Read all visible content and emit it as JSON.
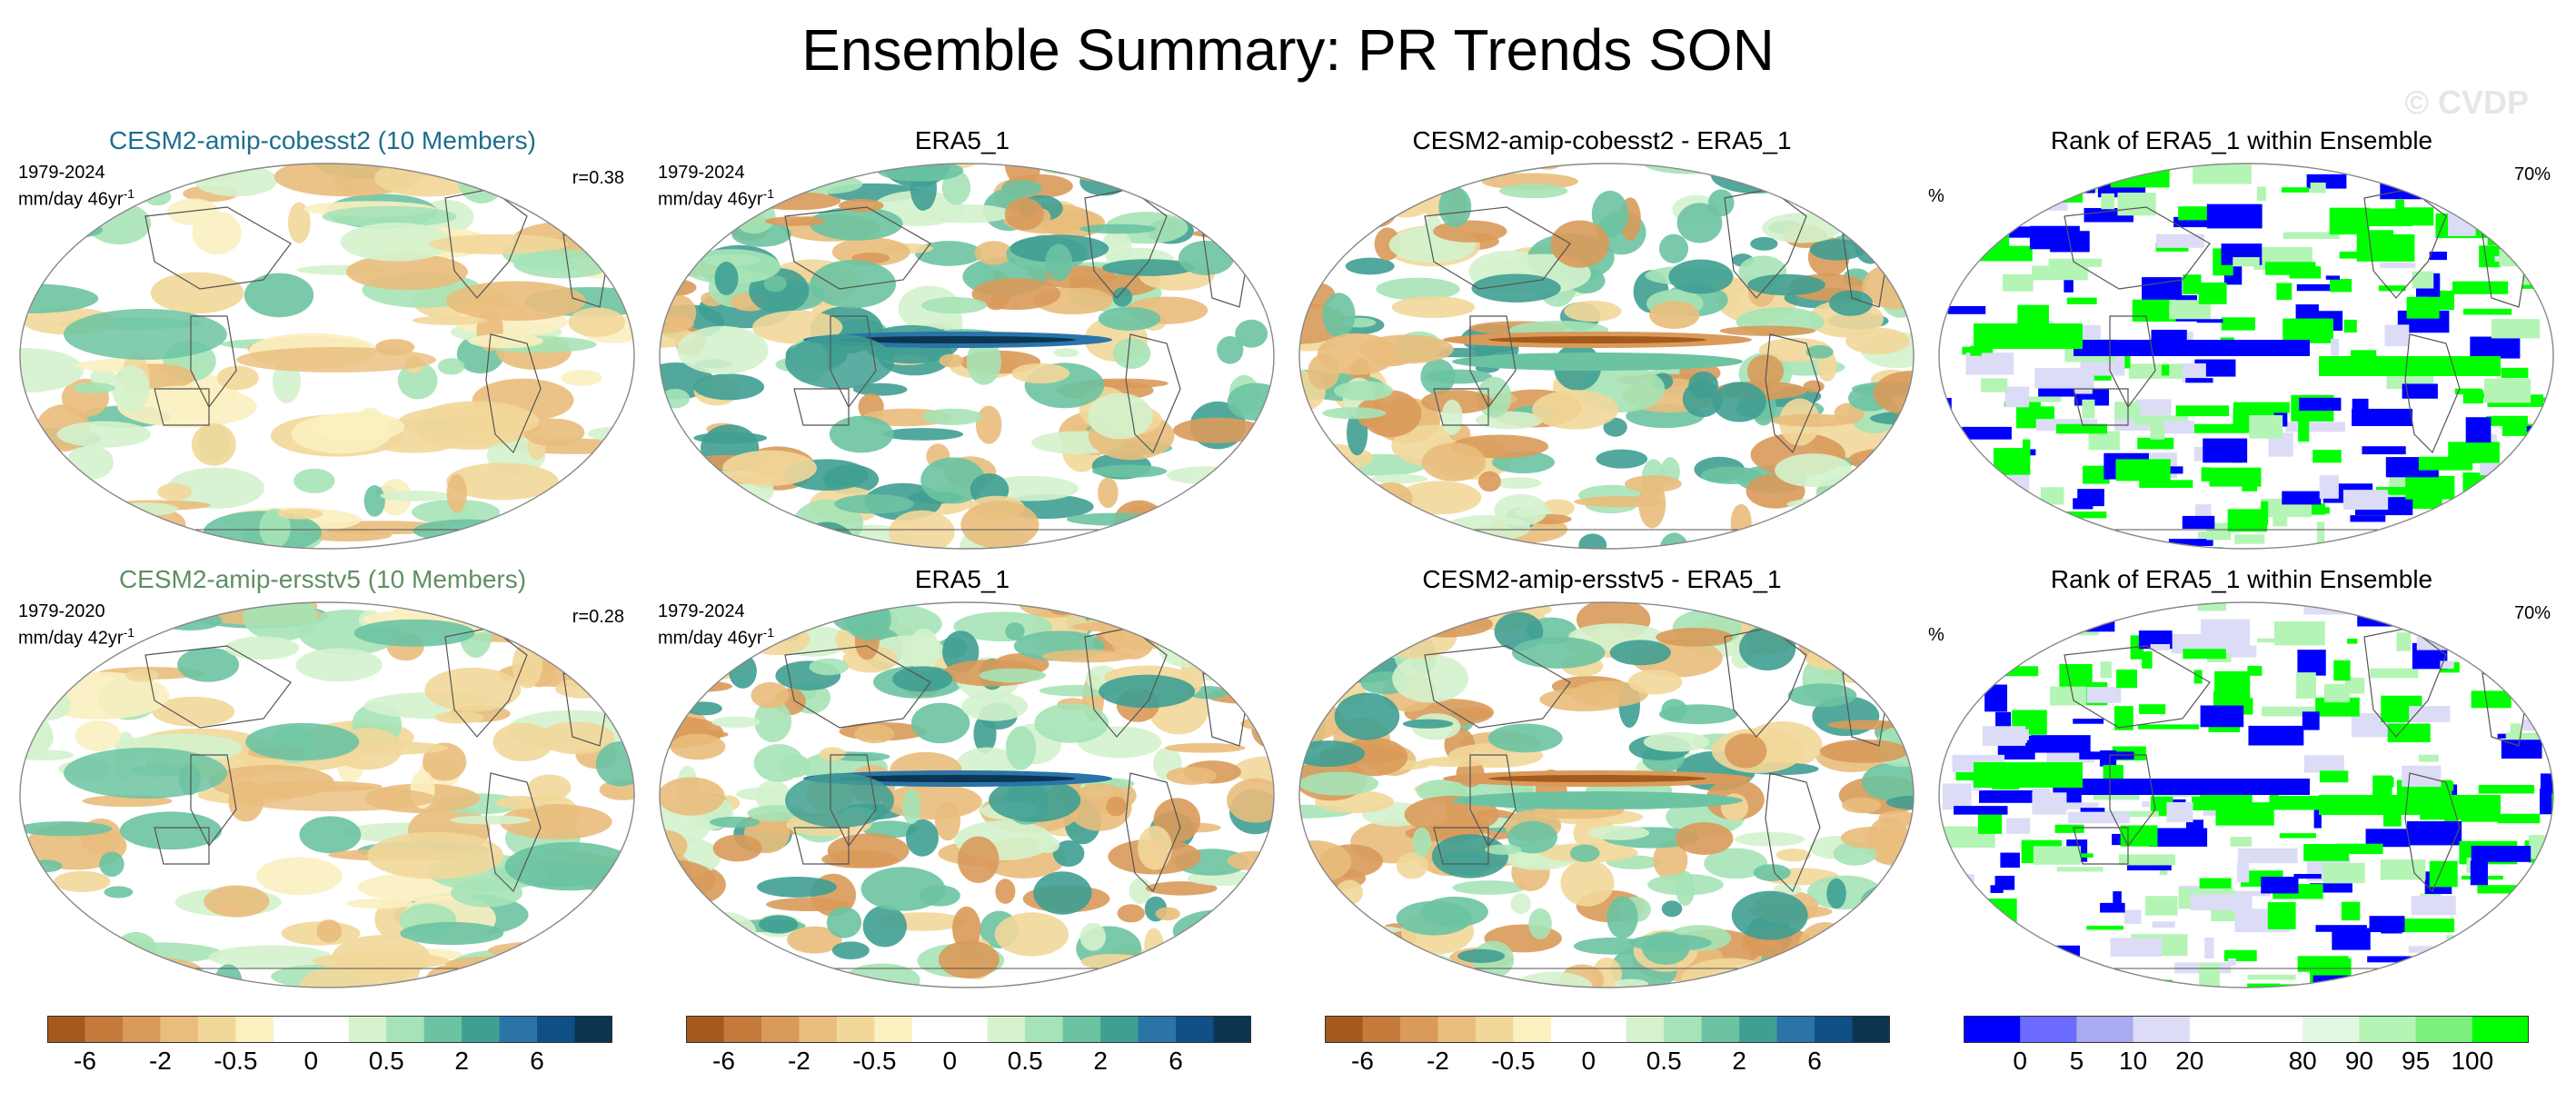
{
  "title": "Ensemble Summary: PR Trends SON",
  "watermark": "© CVDP",
  "panels": [
    {
      "title": "CESM2-amip-cobesst2 (10 Members)",
      "title_color": "#1e6e8c",
      "years": "1979-2024",
      "units": "mm/day 46yr",
      "units_sup": "-1",
      "corr": "r=0.38",
      "kind": "model",
      "seed": 3
    },
    {
      "title": "ERA5_1",
      "years": "1979-2024",
      "units": "mm/day 46yr",
      "units_sup": "-1",
      "kind": "obs",
      "seed": 7
    },
    {
      "title": "CESM2-amip-cobesst2 - ERA5_1",
      "kind": "diff",
      "seed": 11
    },
    {
      "title": "Rank of ERA5_1 within Ensemble",
      "pct_label": "%",
      "pct_value": "70%",
      "kind": "rank",
      "seed": 13
    },
    {
      "title": "CESM2-amip-ersstv5 (10 Members)",
      "title_color": "#5f8f62",
      "years": "1979-2020",
      "units": "mm/day 42yr",
      "units_sup": "-1",
      "corr": "r=0.28",
      "kind": "model",
      "seed": 17
    },
    {
      "title": "ERA5_1",
      "years": "1979-2024",
      "units": "mm/day 46yr",
      "units_sup": "-1",
      "kind": "obs",
      "seed": 19
    },
    {
      "title": "CESM2-amip-ersstv5 - ERA5_1",
      "kind": "diff",
      "seed": 23
    },
    {
      "title": "Rank of ERA5_1 within Ensemble",
      "pct_label": "%",
      "pct_value": "70%",
      "kind": "rank",
      "seed": 29
    }
  ],
  "colorbars": {
    "trend": {
      "colors": [
        "#a35a1c",
        "#c37a3a",
        "#d99a5a",
        "#e9bd7c",
        "#f2d79a",
        "#fbf0c0",
        "#ffffff",
        "#ffffff",
        "#d4f2cc",
        "#a6e3b6",
        "#6cc3a2",
        "#3f9f92",
        "#2a74a8",
        "#0f4f86",
        "#0b3550"
      ],
      "tick_labels": [
        "-6",
        "-2",
        "-0.5",
        "0",
        "0.5",
        "2",
        "6"
      ],
      "tick_boundaries": [
        1,
        3,
        5,
        7,
        9,
        11,
        13
      ]
    },
    "rank": {
      "colors": [
        "#0000ff",
        "#6b6bff",
        "#aaaaf0",
        "#dcdcf6",
        "#ffffff",
        "#ffffff",
        "#e2f8e2",
        "#b4f4b4",
        "#7cf07c",
        "#00ff00"
      ],
      "tick_labels": [
        "0",
        "5",
        "10",
        "20",
        "80",
        "90",
        "95",
        "100"
      ],
      "tick_boundaries": [
        1,
        2,
        3,
        4,
        6,
        7,
        8,
        9
      ]
    }
  },
  "chart_data": [
    {
      "type": "heatmap",
      "title": "CESM2-amip-cobesst2 (10 Members)",
      "subtitle": "1979-2024 mm/day 46yr-1",
      "annotation": "r=0.38",
      "colorbar_ticks": [
        "-6",
        "-2",
        "-0.5",
        "0",
        "0.5",
        "2",
        "6"
      ]
    },
    {
      "type": "heatmap",
      "title": "ERA5_1",
      "subtitle": "1979-2024 mm/day 46yr-1",
      "colorbar_ticks": [
        "-6",
        "-2",
        "-0.5",
        "0",
        "0.5",
        "2",
        "6"
      ]
    },
    {
      "type": "heatmap",
      "title": "CESM2-amip-cobesst2 - ERA5_1",
      "colorbar_ticks": [
        "-6",
        "-2",
        "-0.5",
        "0",
        "0.5",
        "2",
        "6"
      ]
    },
    {
      "type": "heatmap",
      "title": "Rank of ERA5_1 within Ensemble",
      "annotation": "70%",
      "colorbar_ticks": [
        "0",
        "5",
        "10",
        "20",
        "80",
        "90",
        "95",
        "100"
      ]
    },
    {
      "type": "heatmap",
      "title": "CESM2-amip-ersstv5 (10 Members)",
      "subtitle": "1979-2020 mm/day 42yr-1",
      "annotation": "r=0.28",
      "colorbar_ticks": [
        "-6",
        "-2",
        "-0.5",
        "0",
        "0.5",
        "2",
        "6"
      ]
    },
    {
      "type": "heatmap",
      "title": "ERA5_1",
      "subtitle": "1979-2024 mm/day 46yr-1",
      "colorbar_ticks": [
        "-6",
        "-2",
        "-0.5",
        "0",
        "0.5",
        "2",
        "6"
      ]
    },
    {
      "type": "heatmap",
      "title": "CESM2-amip-ersstv5 - ERA5_1",
      "colorbar_ticks": [
        "-6",
        "-2",
        "-0.5",
        "0",
        "0.5",
        "2",
        "6"
      ]
    },
    {
      "type": "heatmap",
      "title": "Rank of ERA5_1 within Ensemble",
      "annotation": "70%",
      "colorbar_ticks": [
        "0",
        "5",
        "10",
        "20",
        "80",
        "90",
        "95",
        "100"
      ]
    }
  ]
}
